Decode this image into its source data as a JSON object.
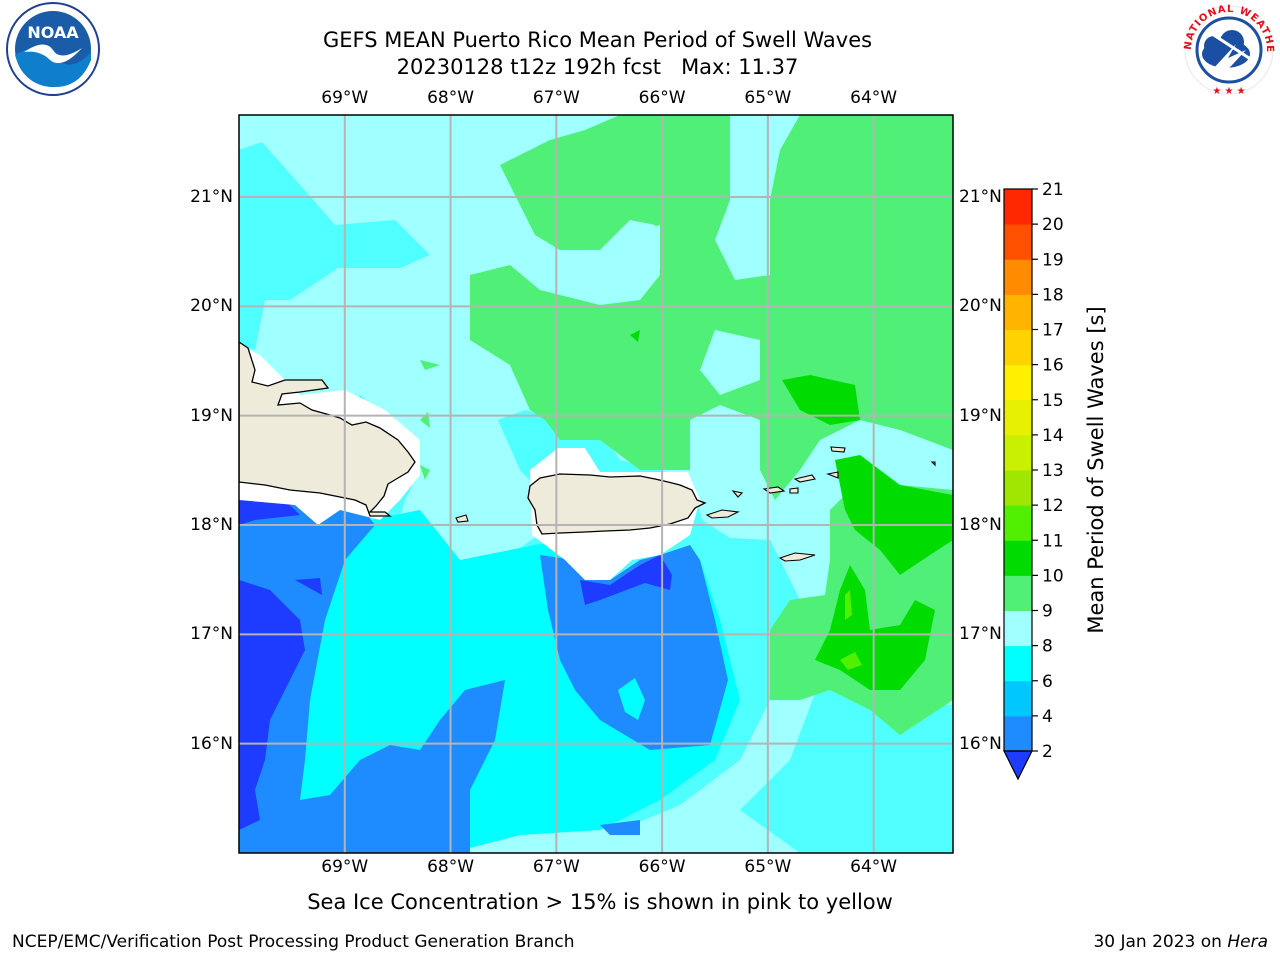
{
  "title": {
    "line1": "GEFS MEAN Puerto Rico Mean Period of Swell Waves",
    "line2": "20230128 t12z 192h fcst   Max: 11.37"
  },
  "map": {
    "lon_range": [
      -70.0,
      -63.25
    ],
    "lat_range": [
      15.0,
      21.75
    ],
    "lon_ticks": [
      "69°W",
      "68°W",
      "67°W",
      "66°W",
      "65°W",
      "64°W"
    ],
    "lat_ticks": [
      "21°N",
      "20°N",
      "19°N",
      "18°N",
      "17°N",
      "16°N"
    ],
    "grid": true
  },
  "colorbar": {
    "label": "Mean Period of Swell Waves [s]",
    "ticks": [
      "2",
      "4",
      "6",
      "8",
      "9",
      "10",
      "11",
      "12",
      "13",
      "14",
      "15",
      "16",
      "17",
      "18",
      "19",
      "20",
      "21"
    ],
    "colors": [
      "#1e3cff",
      "#1e8cff",
      "#00c8ff",
      "#00ffff",
      "#a0ffff",
      "#50f078",
      "#00dc00",
      "#50f000",
      "#a0e600",
      "#c8f000",
      "#e6f000",
      "#fff000",
      "#ffd200",
      "#ffb400",
      "#ff8c00",
      "#ff5000",
      "#ff2800",
      "#ff0000"
    ],
    "extend": "min"
  },
  "note": "Sea Ice Concentration > 15% is shown in pink to yellow",
  "footer": {
    "left": "NCEP/EMC/Verification Post Processing Product Generation Branch",
    "right_prefix": "30 Jan 2023 on ",
    "right_machine": "Hera"
  },
  "logos": {
    "left": "noaa-logo-icon",
    "right": "nws-logo-icon",
    "left_text": "NOAA",
    "right_ring_text": "NATIONAL WEATHER SERVICE"
  }
}
